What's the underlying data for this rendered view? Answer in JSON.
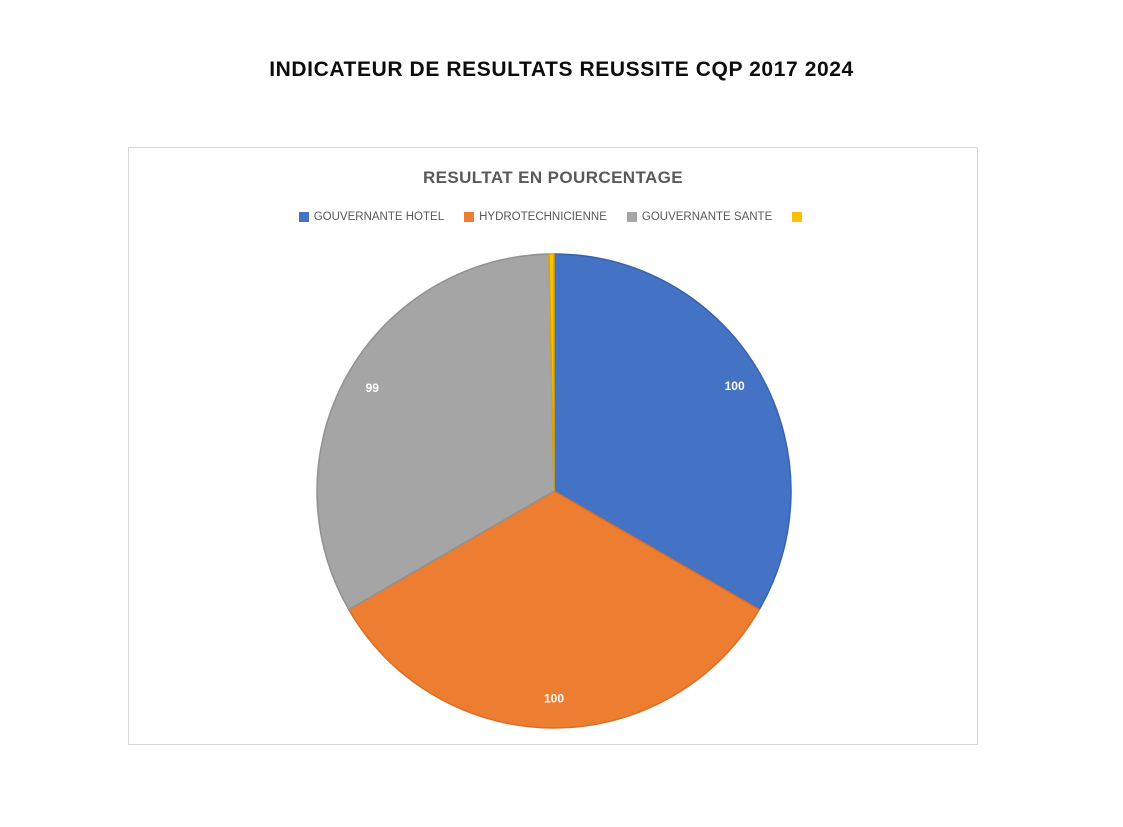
{
  "page": {
    "title": "INDICATEUR DE RESULTATS REUSSITE CQP 2017 2024"
  },
  "chart": {
    "title": "RESULTAT EN POURCENTAGE",
    "legend": [
      {
        "label": "GOUVERNANTE HOTEL",
        "color": "#4472C4"
      },
      {
        "label": "HYDROTECHNICIENNE",
        "color": "#ED7D31"
      },
      {
        "label": "GOUVERNANTE SANTE",
        "color": "#A5A5A5"
      },
      {
        "label": "",
        "color": "#FFC000"
      }
    ]
  },
  "chart_data": {
    "type": "pie",
    "title": "RESULTAT EN POURCENTAGE",
    "categories": [
      "GOUVERNANTE HOTEL",
      "HYDROTECHNICIENNE",
      "GOUVERNANTE SANTE",
      ""
    ],
    "values": [
      100,
      100,
      99,
      1
    ],
    "data_labels": [
      "100",
      "100",
      "99",
      ""
    ],
    "colors": [
      "#4472C4",
      "#ED7D31",
      "#A5A5A5",
      "#FFC000"
    ],
    "stroke_colors": [
      "#3a62ac",
      "#d96f28",
      "#919191",
      "#dba400"
    ],
    "legend_position": "top",
    "start_angle_deg": -90,
    "direction": "clockwise",
    "label_color": "#ffffff"
  }
}
